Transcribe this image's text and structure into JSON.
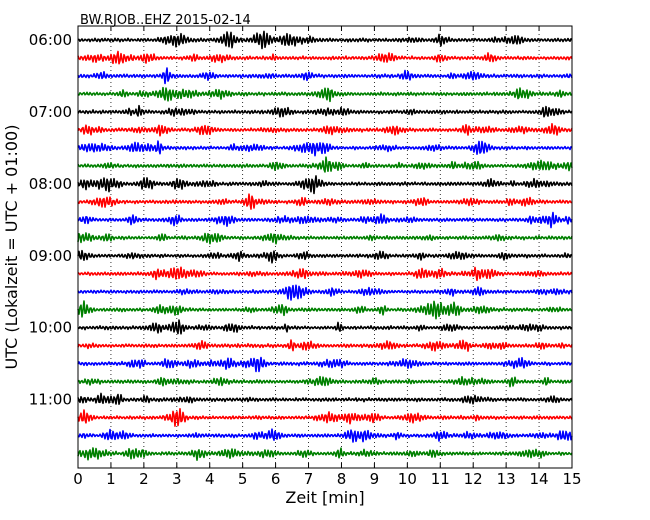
{
  "chart_data": {
    "type": "line",
    "title": "BW.RJOB..EHZ 2015-02-14",
    "xlabel": "Zeit  [min]",
    "ylabel": "UTC (Lokalzeit = UTC + 01:00)",
    "xlim": [
      0,
      15
    ],
    "x_ticks": [
      "0",
      "1",
      "2",
      "3",
      "4",
      "5",
      "6",
      "7",
      "8",
      "9",
      "10",
      "11",
      "12",
      "13",
      "14",
      "15"
    ],
    "y_tick_labels": [
      "06:00",
      "07:00",
      "08:00",
      "09:00",
      "10:00",
      "11:00"
    ],
    "grid": "vertical dotted lines at each minute",
    "traces_per_hour": 4,
    "trace_colors": [
      "#000000",
      "#ff0000",
      "#0000ff",
      "#008000"
    ],
    "series": [
      {
        "start": "06:00",
        "color": "#000000"
      },
      {
        "start": "06:15",
        "color": "#ff0000"
      },
      {
        "start": "06:30",
        "color": "#0000ff"
      },
      {
        "start": "06:45",
        "color": "#008000"
      },
      {
        "start": "07:00",
        "color": "#000000"
      },
      {
        "start": "07:15",
        "color": "#ff0000"
      },
      {
        "start": "07:30",
        "color": "#0000ff"
      },
      {
        "start": "07:45",
        "color": "#008000"
      },
      {
        "start": "08:00",
        "color": "#000000"
      },
      {
        "start": "08:15",
        "color": "#ff0000"
      },
      {
        "start": "08:30",
        "color": "#0000ff"
      },
      {
        "start": "08:45",
        "color": "#008000"
      },
      {
        "start": "09:00",
        "color": "#000000"
      },
      {
        "start": "09:15",
        "color": "#ff0000"
      },
      {
        "start": "09:30",
        "color": "#0000ff"
      },
      {
        "start": "09:45",
        "color": "#008000"
      },
      {
        "start": "10:00",
        "color": "#000000"
      },
      {
        "start": "10:15",
        "color": "#ff0000"
      },
      {
        "start": "10:30",
        "color": "#0000ff"
      },
      {
        "start": "10:45",
        "color": "#008000"
      },
      {
        "start": "11:00",
        "color": "#000000"
      },
      {
        "start": "11:15",
        "color": "#ff0000"
      },
      {
        "start": "11:30",
        "color": "#0000ff"
      },
      {
        "start": "11:45",
        "color": "#008000"
      }
    ]
  }
}
